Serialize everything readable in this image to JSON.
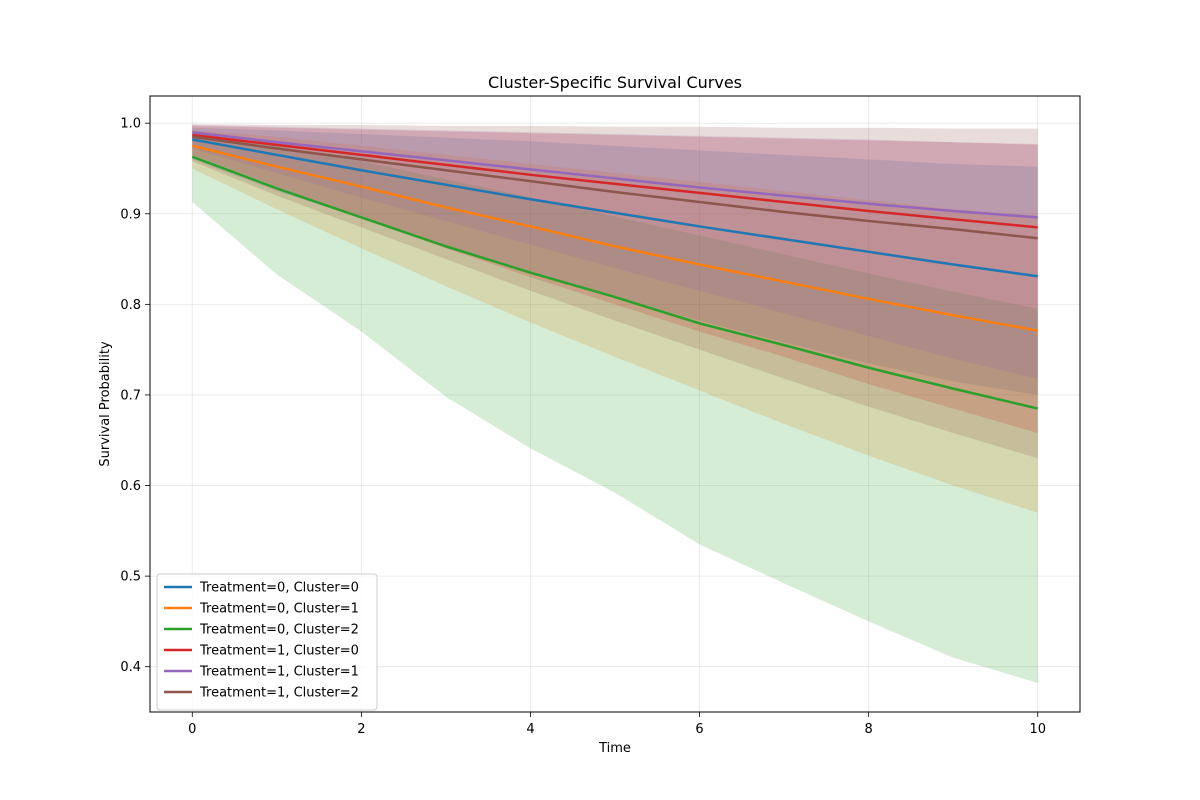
{
  "chart_data": {
    "type": "line",
    "title": "Cluster-Specific Survival Curves",
    "xlabel": "Time",
    "ylabel": "Survival Probability",
    "xlim": [
      -0.5,
      10.5
    ],
    "ylim": [
      0.35,
      1.03
    ],
    "x_ticks": [
      0,
      2,
      4,
      6,
      8,
      10
    ],
    "y_ticks": [
      0.4,
      0.5,
      0.6,
      0.7,
      0.8,
      0.9,
      1.0
    ],
    "grid": true,
    "legend_position": "lower-left",
    "x": [
      0,
      1,
      2,
      3,
      4,
      5,
      6,
      7,
      8,
      9,
      10
    ],
    "series": [
      {
        "name": "Treatment=0, Cluster=0",
        "color": "#1f77b4",
        "values": [
          0.982,
          0.965,
          0.948,
          0.932,
          0.916,
          0.901,
          0.886,
          0.872,
          0.858,
          0.844,
          0.831
        ],
        "lower": [
          0.96,
          0.925,
          0.895,
          0.865,
          0.835,
          0.808,
          0.782,
          0.758,
          0.735,
          0.715,
          0.7
        ],
        "upper": [
          0.995,
          0.992,
          0.988,
          0.984,
          0.98,
          0.975,
          0.97,
          0.965,
          0.96,
          0.955,
          0.952
        ]
      },
      {
        "name": "Treatment=0, Cluster=1",
        "color": "#ff7f0e",
        "values": [
          0.975,
          0.952,
          0.93,
          0.907,
          0.886,
          0.864,
          0.844,
          0.825,
          0.806,
          0.788,
          0.771
        ],
        "lower": [
          0.95,
          0.905,
          0.862,
          0.82,
          0.78,
          0.742,
          0.705,
          0.668,
          0.633,
          0.6,
          0.57
        ],
        "upper": [
          0.992,
          0.985,
          0.975,
          0.965,
          0.955,
          0.945,
          0.935,
          0.925,
          0.915,
          0.905,
          0.898
        ]
      },
      {
        "name": "Treatment=0, Cluster=2",
        "color": "#2ca02c",
        "values": [
          0.963,
          0.928,
          0.896,
          0.864,
          0.835,
          0.808,
          0.779,
          0.755,
          0.73,
          0.707,
          0.685
        ],
        "lower": [
          0.913,
          0.833,
          0.77,
          0.698,
          0.641,
          0.592,
          0.535,
          0.492,
          0.45,
          0.41,
          0.382
        ],
        "upper": [
          0.99,
          0.975,
          0.958,
          0.938,
          0.918,
          0.897,
          0.876,
          0.855,
          0.834,
          0.814,
          0.795
        ]
      },
      {
        "name": "Treatment=1, Cluster=0",
        "color": "#d62728",
        "values": [
          0.987,
          0.976,
          0.965,
          0.954,
          0.943,
          0.933,
          0.923,
          0.913,
          0.903,
          0.894,
          0.885
        ],
        "lower": [
          0.965,
          0.93,
          0.895,
          0.862,
          0.83,
          0.8,
          0.77,
          0.742,
          0.712,
          0.685,
          0.658
        ],
        "upper": [
          0.997,
          0.995,
          0.993,
          0.991,
          0.989,
          0.987,
          0.985,
          0.983,
          0.981,
          0.979,
          0.977
        ]
      },
      {
        "name": "Treatment=1, Cluster=1",
        "color": "#9467bd",
        "values": [
          0.99,
          0.979,
          0.969,
          0.959,
          0.949,
          0.939,
          0.929,
          0.92,
          0.911,
          0.903,
          0.896
        ],
        "lower": [
          0.972,
          0.945,
          0.918,
          0.892,
          0.866,
          0.84,
          0.815,
          0.79,
          0.765,
          0.74,
          0.718
        ],
        "upper": [
          0.998,
          0.996,
          0.994,
          0.992,
          0.99,
          0.988,
          0.986,
          0.984,
          0.982,
          0.979,
          0.976
        ]
      },
      {
        "name": "Treatment=1, Cluster=2",
        "color": "#8c564b",
        "values": [
          0.985,
          0.972,
          0.96,
          0.948,
          0.936,
          0.924,
          0.913,
          0.902,
          0.892,
          0.883,
          0.873
        ],
        "lower": [
          0.958,
          0.92,
          0.885,
          0.85,
          0.815,
          0.782,
          0.75,
          0.718,
          0.687,
          0.658,
          0.63
        ],
        "upper": [
          0.999,
          0.998,
          0.998,
          0.997,
          0.997,
          0.996,
          0.996,
          0.995,
          0.995,
          0.994,
          0.994
        ]
      }
    ]
  }
}
